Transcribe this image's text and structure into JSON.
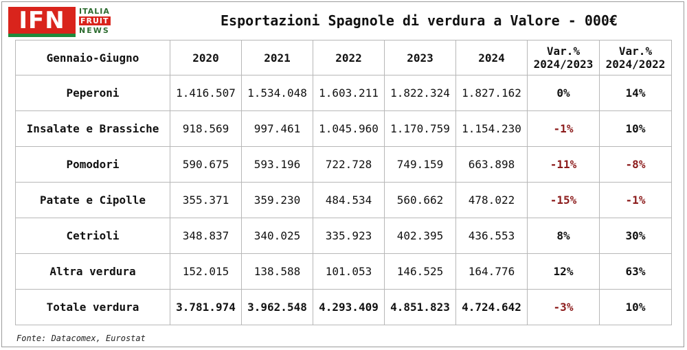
{
  "logo": {
    "mark": "IFN",
    "line1": "ITALIA",
    "line2": "FRUIT",
    "line3": "NEWS"
  },
  "title": "Esportazioni Spagnole di verdura a Valore - 000€",
  "table": {
    "header_label": "Gennaio-Giugno",
    "years": [
      "2020",
      "2021",
      "2022",
      "2023",
      "2024"
    ],
    "var1": {
      "line1": "Var.%",
      "line2": "2024/2023"
    },
    "var2": {
      "line1": "Var.%",
      "line2": "2024/2022"
    },
    "rows": [
      {
        "label": "Peperoni",
        "values": [
          "1.416.507",
          "1.534.048",
          "1.603.211",
          "1.822.324",
          "1.827.162"
        ],
        "var1": "0%",
        "var2": "14%"
      },
      {
        "label": "Insalate e Brassiche",
        "values": [
          "918.569",
          "997.461",
          "1.045.960",
          "1.170.759",
          "1.154.230"
        ],
        "var1": "-1%",
        "var2": "10%"
      },
      {
        "label": "Pomodori",
        "values": [
          "590.675",
          "593.196",
          "722.728",
          "749.159",
          "663.898"
        ],
        "var1": "-11%",
        "var2": "-8%"
      },
      {
        "label": "Patate e Cipolle",
        "values": [
          "355.371",
          "359.230",
          "484.534",
          "560.662",
          "478.022"
        ],
        "var1": "-15%",
        "var2": "-1%"
      },
      {
        "label": "Cetrioli",
        "values": [
          "348.837",
          "340.025",
          "335.923",
          "402.395",
          "436.553"
        ],
        "var1": "8%",
        "var2": "30%"
      },
      {
        "label": "Altra verdura",
        "values": [
          "152.015",
          "138.588",
          "101.053",
          "146.525",
          "164.776"
        ],
        "var1": "12%",
        "var2": "63%"
      },
      {
        "label": "Totale verdura",
        "values": [
          "3.781.974",
          "3.962.548",
          "4.293.409",
          "4.851.823",
          "4.724.642"
        ],
        "var1": "-3%",
        "var2": "10%"
      }
    ]
  },
  "source": "Fonte: Datacomex, Eurostat",
  "colors": {
    "negative": "#8b1a1a",
    "logo_red": "#d9241c",
    "logo_green": "#1f8a3b"
  }
}
